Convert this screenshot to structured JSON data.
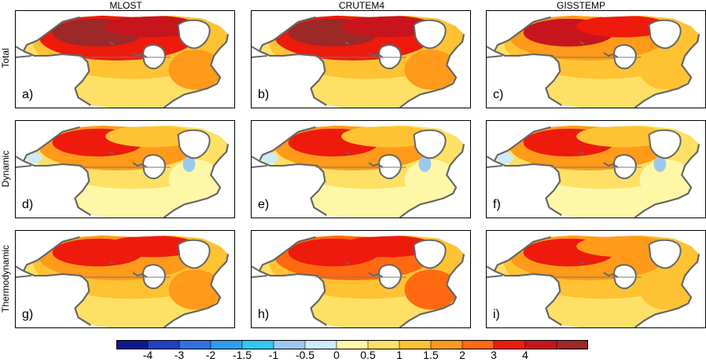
{
  "columns": [
    "MLOST",
    "CRUTEM4",
    "GISSTEMP"
  ],
  "rows": [
    "Total",
    "Dynamic",
    "Thermodynamic"
  ],
  "panels": [
    {
      "label": "a)",
      "row": 0,
      "col": 0
    },
    {
      "label": "b)",
      "row": 0,
      "col": 1
    },
    {
      "label": "c)",
      "row": 0,
      "col": 2
    },
    {
      "label": "d)",
      "row": 1,
      "col": 0
    },
    {
      "label": "e)",
      "row": 1,
      "col": 1
    },
    {
      "label": "f)",
      "row": 1,
      "col": 2
    },
    {
      "label": "g)",
      "row": 2,
      "col": 0
    },
    {
      "label": "h)",
      "row": 2,
      "col": 1
    },
    {
      "label": "i)",
      "row": 2,
      "col": 2
    }
  ],
  "colorbar": {
    "colors": [
      "#0a1a8c",
      "#1f3fc4",
      "#2f6fe0",
      "#2f9df0",
      "#2fc8f0",
      "#9cc8f0",
      "#cdebf8",
      "#fff7a8",
      "#ffe066",
      "#ffc233",
      "#ff9a1a",
      "#ff6a10",
      "#ee1a0c",
      "#c8141c",
      "#9c2828"
    ],
    "ticks": [
      "-4",
      "-3",
      "-2",
      "-1.5",
      "-1",
      "-0.5",
      "0",
      "0.5",
      "1",
      "1.5",
      "2",
      "3",
      "4"
    ]
  }
}
